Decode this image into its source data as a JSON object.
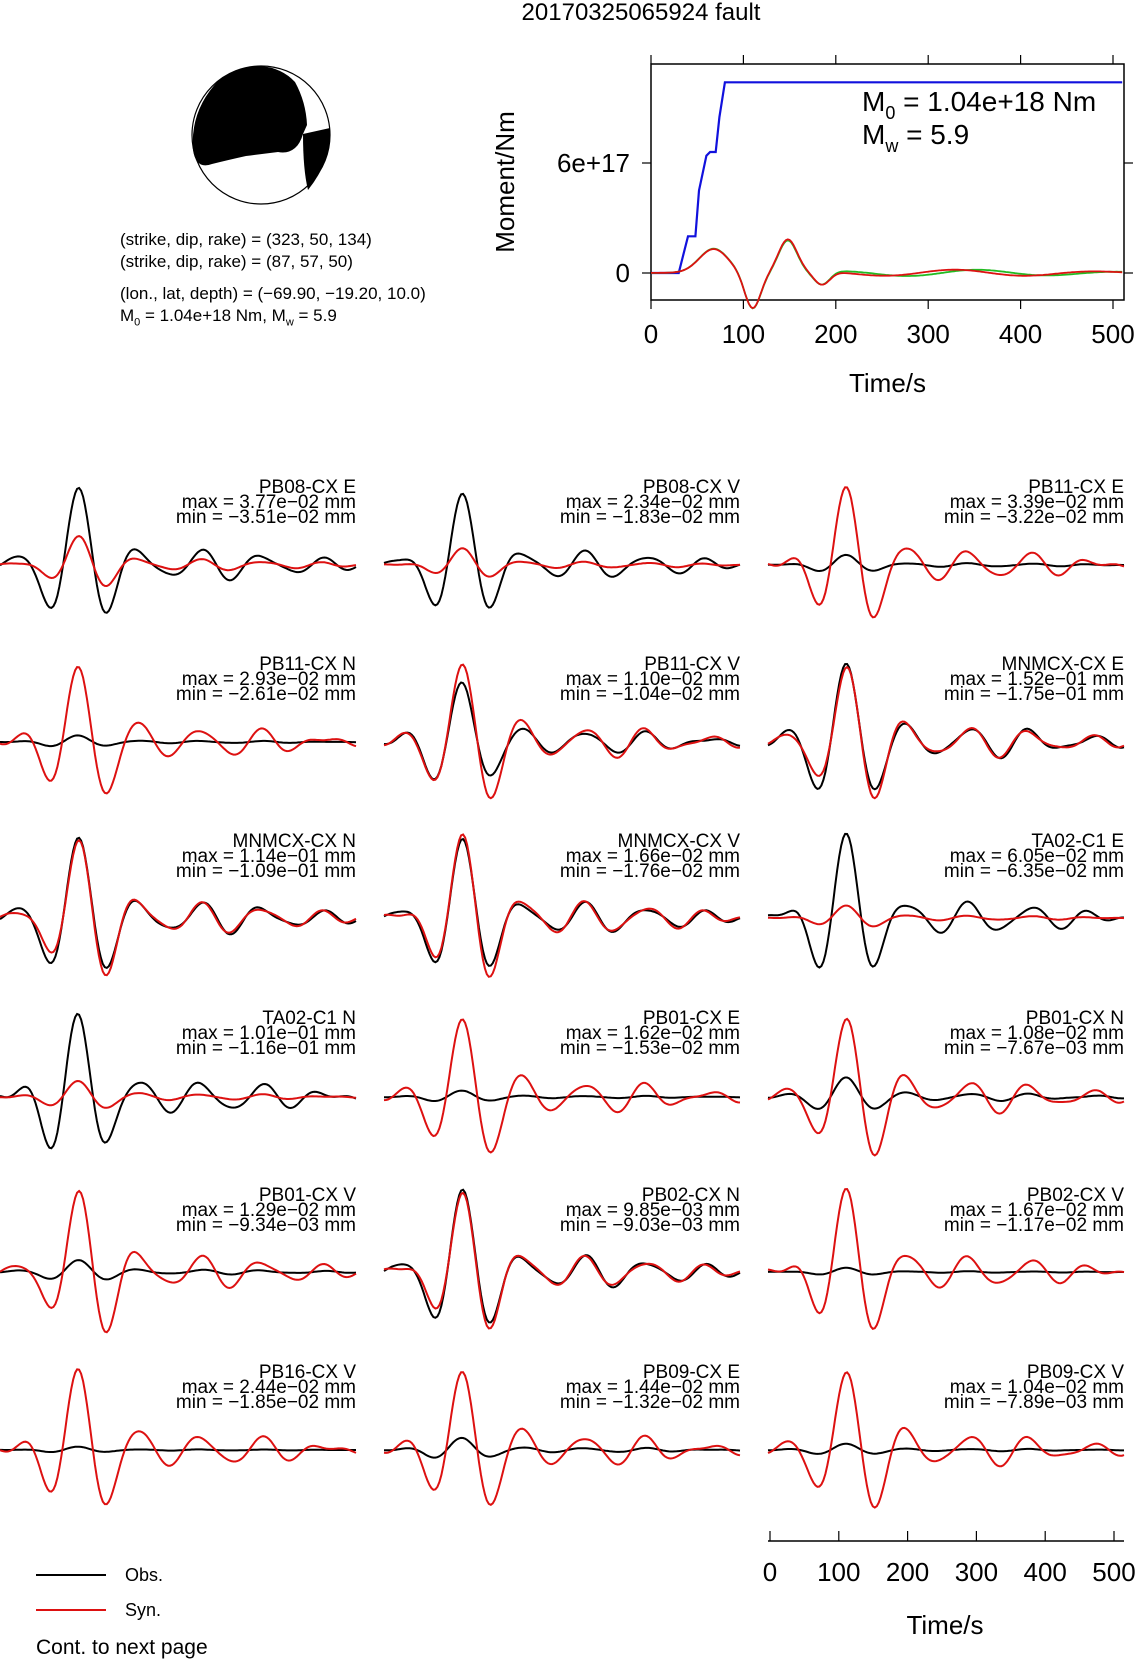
{
  "title": "20170325065924 fault",
  "mechanism": {
    "line1": "(strike, dip, rake) = (323, 50, 134)",
    "line2": "(strike, dip, rake) = (87, 57, 50)",
    "line3": "(lon., lat, depth) = (−69.90, −19.20, 10.0)",
    "line4_m0": "M",
    "line4_m0_sub": "0",
    "line4_m0_val": " = 1.04e+18 Nm, M",
    "line4_mw_sub": "w",
    "line4_mw_val": " = 5.9",
    "strike": 323,
    "dip": 50,
    "rake": 134
  },
  "colors": {
    "obs": "#000000",
    "syn": "#dd1111",
    "moment": "#1111dd",
    "stf_green": "#22bb22"
  },
  "chart_data": [
    {
      "type": "line",
      "title": "",
      "xlabel": "Time/s",
      "ylabel": "Moment/Nm",
      "xlim": [
        0,
        510
      ],
      "ylim": [
        -1.4e+17,
        1.05e+18
      ],
      "xticks": [
        "0",
        "100",
        "200",
        "300",
        "400",
        "500"
      ],
      "yticks": [
        "0",
        "6e+17"
      ],
      "annotation": {
        "m0_sym": "M",
        "m0_sub": "0",
        "m0_val": " = 1.04e+18 Nm",
        "mw_sym": "M",
        "mw_sub": "w",
        "mw_val": " = 5.9"
      },
      "series": [
        {
          "x": [
            0,
            30,
            40,
            48,
            52,
            60,
            64,
            70,
            74,
            80,
            510
          ],
          "y": [
            0,
            0,
            2e+17,
            2e+17,
            4.5e+17,
            6.4e+17,
            6.6e+17,
            6.6e+17,
            8.5e+17,
            1.04e+18,
            1.04e+18
          ]
        }
      ]
    },
    {
      "type": "line",
      "title": "",
      "xlabel": "Time/s",
      "xlim": [
        0,
        510
      ],
      "xticks": [
        "0",
        "100",
        "200",
        "300",
        "400",
        "500"
      ],
      "legend": [
        {
          "name": "Obs."
        },
        {
          "name": "Syn."
        }
      ],
      "footer": "Cont. to next page",
      "stations": [
        {
          "name": "PB08-CX E",
          "max": "max = 3.77e−02 mm",
          "min": "min = −3.51e−02 mm"
        },
        {
          "name": "PB08-CX V",
          "max": "max = 2.34e−02 mm",
          "min": "min = −1.83e−02 mm"
        },
        {
          "name": "PB11-CX E",
          "max": "max = 3.39e−02 mm",
          "min": "min = −3.22e−02 mm"
        },
        {
          "name": "PB11-CX N",
          "max": "max = 2.93e−02 mm",
          "min": "min = −2.61e−02 mm"
        },
        {
          "name": "PB11-CX V",
          "max": "max = 1.10e−02 mm",
          "min": "min = −1.04e−02 mm"
        },
        {
          "name": "MNMCX-CX E",
          "max": "max = 1.52e−01 mm",
          "min": "min = −1.75e−01 mm"
        },
        {
          "name": "MNMCX-CX N",
          "max": "max = 1.14e−01 mm",
          "min": "min = −1.09e−01 mm"
        },
        {
          "name": "MNMCX-CX V",
          "max": "max = 1.66e−02 mm",
          "min": "min = −1.76e−02 mm"
        },
        {
          "name": "TA02-C1 E",
          "max": "max = 6.05e−02 mm",
          "min": "min = −6.35e−02 mm"
        },
        {
          "name": "TA02-C1 N",
          "max": "max = 1.01e−01 mm",
          "min": "min = −1.16e−01 mm"
        },
        {
          "name": "PB01-CX E",
          "max": "max = 1.62e−02 mm",
          "min": "min = −1.53e−02 mm"
        },
        {
          "name": "PB01-CX N",
          "max": "max = 1.08e−02 mm",
          "min": "min = −7.67e−03 mm"
        },
        {
          "name": "PB01-CX V",
          "max": "max = 1.29e−02 mm",
          "min": "min = −9.34e−03 mm"
        },
        {
          "name": "PB02-CX N",
          "max": "max = 9.85e−03 mm",
          "min": "min = −9.03e−03 mm"
        },
        {
          "name": "PB02-CX V",
          "max": "max = 1.67e−02 mm",
          "min": "min = −1.17e−02 mm"
        },
        {
          "name": "PB16-CX V",
          "max": "max = 2.44e−02 mm",
          "min": "min = −1.85e−02 mm"
        },
        {
          "name": "PB09-CX E",
          "max": "max = 1.44e−02 mm",
          "min": "min = −1.32e−02 mm"
        },
        {
          "name": "PB09-CX V",
          "max": "max = 1.04e−02 mm",
          "min": "min = −7.89e−03 mm"
        }
      ]
    }
  ]
}
